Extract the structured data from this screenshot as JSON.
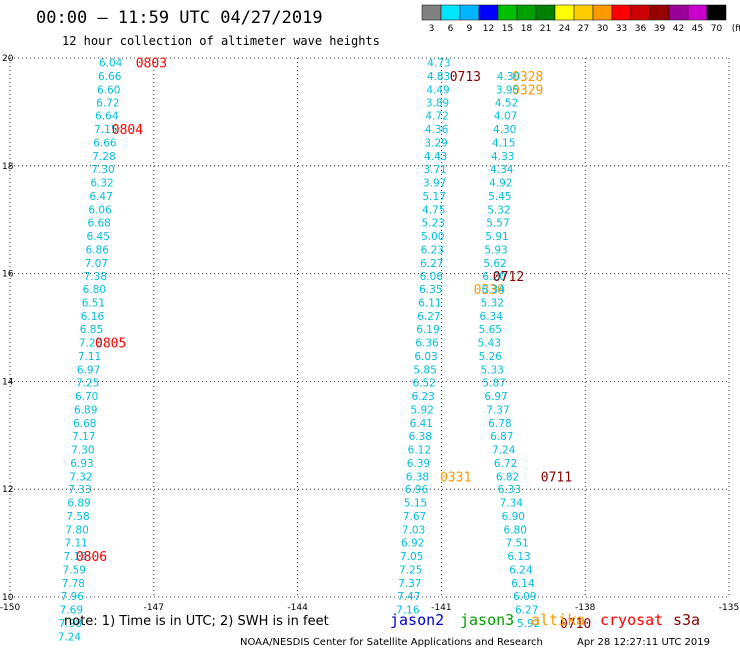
{
  "title": "00:00 – 11:59 UTC 04/27/2019",
  "subtitle": "12 hour collection of altimeter wave heights",
  "colorbar": {
    "labels": [
      "3",
      "6",
      "9",
      "12",
      "15",
      "18",
      "21",
      "24",
      "27",
      "30",
      "33",
      "36",
      "39",
      "42",
      "45",
      "70",
      "(ft)"
    ],
    "colors": [
      "#808080",
      "#00e5ff",
      "#00b4ff",
      "#0000ff",
      "#00c000",
      "#00a000",
      "#008000",
      "#ffff00",
      "#ffcc00",
      "#ff9900",
      "#ff0000",
      "#cc0000",
      "#990000",
      "#990099",
      "#cc00cc",
      "#000000"
    ]
  },
  "note": "note:  1) Time is in UTC;  2) SWH is in feet",
  "satellites": [
    {
      "name": "jason2",
      "color": "#0000cc"
    },
    {
      "name": "jason3",
      "color": "#00a000"
    },
    {
      "name": "altika",
      "color": "#ff9900"
    },
    {
      "name": "cryosat",
      "color": "#ff0000"
    },
    {
      "name": "s3a",
      "color": "#880000"
    }
  ],
  "footer_left": "NOAA/NESDIS Center for Satellite Applications and Research",
  "footer_right": "Apr 28 12:27:11 UTC 2019",
  "chart_data": {
    "type": "scatter",
    "xlim": [
      -150,
      -135
    ],
    "ylim": [
      10,
      20
    ],
    "xticks": [
      "-150",
      "-147",
      "-144",
      "-141",
      "-138",
      "-135"
    ],
    "yticks": [
      "20",
      "18",
      "16",
      "14",
      "12",
      "10"
    ],
    "value_color": "#00bfdf",
    "tracks": [
      {
        "satellite": "cryosat",
        "points": [
          {
            "lon": -147.9,
            "lat": 19.92,
            "swh": "6.04"
          },
          {
            "lon": -147.92,
            "lat": 19.67,
            "swh": "6.66"
          },
          {
            "lon": -147.94,
            "lat": 19.42,
            "swh": "6.60"
          },
          {
            "lon": -147.96,
            "lat": 19.17,
            "swh": "6.72"
          },
          {
            "lon": -147.98,
            "lat": 18.93,
            "swh": "6.64"
          },
          {
            "lon": -148.0,
            "lat": 18.68,
            "swh": "7.15"
          },
          {
            "lon": -148.02,
            "lat": 18.43,
            "swh": "6.66"
          },
          {
            "lon": -148.04,
            "lat": 18.18,
            "swh": "7.28"
          },
          {
            "lon": -148.06,
            "lat": 17.94,
            "swh": "7.30"
          },
          {
            "lon": -148.08,
            "lat": 17.69,
            "swh": "6.32"
          },
          {
            "lon": -148.1,
            "lat": 17.44,
            "swh": "6.47"
          },
          {
            "lon": -148.12,
            "lat": 17.19,
            "swh": "6.06"
          },
          {
            "lon": -148.14,
            "lat": 16.95,
            "swh": "6.68"
          },
          {
            "lon": -148.16,
            "lat": 16.7,
            "swh": "6.45"
          },
          {
            "lon": -148.18,
            "lat": 16.45,
            "swh": "6.86"
          },
          {
            "lon": -148.2,
            "lat": 16.2,
            "swh": "7.07"
          },
          {
            "lon": -148.22,
            "lat": 15.96,
            "swh": "7.38"
          },
          {
            "lon": -148.24,
            "lat": 15.71,
            "swh": "6.80"
          },
          {
            "lon": -148.26,
            "lat": 15.46,
            "swh": "6.51"
          },
          {
            "lon": -148.28,
            "lat": 15.21,
            "swh": "6.16"
          },
          {
            "lon": -148.3,
            "lat": 14.97,
            "swh": "6.85"
          },
          {
            "lon": -148.32,
            "lat": 14.72,
            "swh": "7.20"
          },
          {
            "lon": -148.34,
            "lat": 14.47,
            "swh": "7.11"
          },
          {
            "lon": -148.36,
            "lat": 14.22,
            "swh": "6.97"
          },
          {
            "lon": -148.38,
            "lat": 13.98,
            "swh": "7.25"
          },
          {
            "lon": -148.4,
            "lat": 13.73,
            "swh": "6.70"
          },
          {
            "lon": -148.42,
            "lat": 13.48,
            "swh": "6.89"
          },
          {
            "lon": -148.44,
            "lat": 13.23,
            "swh": "6.68"
          },
          {
            "lon": -148.46,
            "lat": 12.99,
            "swh": "7.17"
          },
          {
            "lon": -148.48,
            "lat": 12.74,
            "swh": "7.30"
          },
          {
            "lon": -148.5,
            "lat": 12.49,
            "swh": "6.93"
          },
          {
            "lon": -148.52,
            "lat": 12.24,
            "swh": "7.32"
          },
          {
            "lon": -148.54,
            "lat": 12.0,
            "swh": "7.33"
          },
          {
            "lon": -148.56,
            "lat": 11.75,
            "swh": "6.89"
          },
          {
            "lon": -148.58,
            "lat": 11.5,
            "swh": "7.58"
          },
          {
            "lon": -148.6,
            "lat": 11.25,
            "swh": "7.80"
          },
          {
            "lon": -148.62,
            "lat": 11.01,
            "swh": "7.11"
          },
          {
            "lon": -148.64,
            "lat": 10.76,
            "swh": "7.13"
          },
          {
            "lon": -148.66,
            "lat": 10.51,
            "swh": "7.59"
          },
          {
            "lon": -148.68,
            "lat": 10.26,
            "swh": "7.78"
          },
          {
            "lon": -148.7,
            "lat": 10.02,
            "swh": "7.96"
          },
          {
            "lon": -148.72,
            "lat": 9.77,
            "swh": "7.69"
          },
          {
            "lon": -148.74,
            "lat": 9.52,
            "swh": "7.98"
          },
          {
            "lon": -148.76,
            "lat": 9.27,
            "swh": "7.24"
          }
        ],
        "time_labels": [
          {
            "lon": -147.05,
            "lat": 19.92,
            "text": "0803"
          },
          {
            "lon": -147.55,
            "lat": 18.68,
            "text": "0804"
          },
          {
            "lon": -147.9,
            "lat": 14.72,
            "text": "0805"
          },
          {
            "lon": -148.3,
            "lat": 10.76,
            "text": "0806"
          }
        ]
      },
      {
        "satellite": "altika",
        "points": [
          {
            "lon": -141.05,
            "lat": 19.92,
            "swh": "4.73"
          },
          {
            "lon": -141.06,
            "lat": 19.67,
            "swh": "4.83"
          },
          {
            "lon": -141.07,
            "lat": 19.42,
            "swh": "4.49"
          },
          {
            "lon": -141.08,
            "lat": 19.17,
            "swh": "3.89"
          },
          {
            "lon": -141.09,
            "lat": 18.93,
            "swh": "4.72"
          },
          {
            "lon": -141.1,
            "lat": 18.68,
            "swh": "4.36"
          },
          {
            "lon": -141.11,
            "lat": 18.43,
            "swh": "3.29"
          },
          {
            "lon": -141.12,
            "lat": 18.18,
            "swh": "4.43"
          },
          {
            "lon": -141.13,
            "lat": 17.94,
            "swh": "3.71"
          },
          {
            "lon": -141.14,
            "lat": 17.69,
            "swh": "3.97"
          },
          {
            "lon": -141.15,
            "lat": 17.44,
            "swh": "5.17"
          },
          {
            "lon": -141.16,
            "lat": 17.19,
            "swh": "4.75"
          },
          {
            "lon": -141.17,
            "lat": 16.95,
            "swh": "5.23"
          },
          {
            "lon": -141.18,
            "lat": 16.7,
            "swh": "5.00"
          },
          {
            "lon": -141.19,
            "lat": 16.45,
            "swh": "6.23"
          },
          {
            "lon": -141.2,
            "lat": 16.2,
            "swh": "6.27"
          },
          {
            "lon": -141.21,
            "lat": 15.96,
            "swh": "6.06"
          },
          {
            "lon": -141.22,
            "lat": 15.71,
            "swh": "6.35"
          },
          {
            "lon": -141.24,
            "lat": 15.46,
            "swh": "6.11"
          },
          {
            "lon": -141.26,
            "lat": 15.21,
            "swh": "6.27"
          },
          {
            "lon": -141.28,
            "lat": 14.97,
            "swh": "6.19"
          },
          {
            "lon": -141.3,
            "lat": 14.72,
            "swh": "6.36"
          },
          {
            "lon": -141.32,
            "lat": 14.47,
            "swh": "6.03"
          },
          {
            "lon": -141.34,
            "lat": 14.22,
            "swh": "5.85"
          },
          {
            "lon": -141.36,
            "lat": 13.98,
            "swh": "6.52"
          },
          {
            "lon": -141.38,
            "lat": 13.73,
            "swh": "6.23"
          },
          {
            "lon": -141.4,
            "lat": 13.48,
            "swh": "5.92"
          },
          {
            "lon": -141.42,
            "lat": 13.23,
            "swh": "6.41"
          },
          {
            "lon": -141.44,
            "lat": 12.99,
            "swh": "6.38"
          },
          {
            "lon": -141.46,
            "lat": 12.74,
            "swh": "6.12"
          },
          {
            "lon": -141.48,
            "lat": 12.49,
            "swh": "6.39"
          },
          {
            "lon": -141.5,
            "lat": 12.24,
            "swh": "6.38"
          },
          {
            "lon": -141.52,
            "lat": 12.0,
            "swh": "6.96"
          },
          {
            "lon": -141.54,
            "lat": 11.75,
            "swh": "5.15"
          },
          {
            "lon": -141.56,
            "lat": 11.5,
            "swh": "7.67"
          },
          {
            "lon": -141.58,
            "lat": 11.25,
            "swh": "7.03"
          },
          {
            "lon": -141.6,
            "lat": 11.01,
            "swh": "6.92"
          },
          {
            "lon": -141.62,
            "lat": 10.76,
            "swh": "7.05"
          },
          {
            "lon": -141.64,
            "lat": 10.51,
            "swh": "7.25"
          },
          {
            "lon": -141.66,
            "lat": 10.26,
            "swh": "7.37"
          },
          {
            "lon": -141.68,
            "lat": 10.02,
            "swh": "7.47"
          },
          {
            "lon": -141.7,
            "lat": 9.77,
            "swh": "7.16"
          }
        ],
        "time_labels": [
          {
            "lon": -139.2,
            "lat": 19.67,
            "text": "0328"
          },
          {
            "lon": -139.2,
            "lat": 19.42,
            "text": "0329"
          },
          {
            "lon": -140.0,
            "lat": 15.71,
            "text": "0330"
          },
          {
            "lon": -140.7,
            "lat": 12.24,
            "text": "0331"
          }
        ]
      },
      {
        "satellite": "s3a",
        "points": [
          {
            "lon": -139.6,
            "lat": 19.67,
            "swh": "4.30"
          },
          {
            "lon": -139.62,
            "lat": 19.42,
            "swh": "3.95"
          },
          {
            "lon": -139.64,
            "lat": 19.17,
            "swh": "4.52"
          },
          {
            "lon": -139.66,
            "lat": 18.93,
            "swh": "4.07"
          },
          {
            "lon": -139.68,
            "lat": 18.68,
            "swh": "4.30"
          },
          {
            "lon": -139.7,
            "lat": 18.43,
            "swh": "4.15"
          },
          {
            "lon": -139.72,
            "lat": 18.18,
            "swh": "4.33"
          },
          {
            "lon": -139.74,
            "lat": 17.94,
            "swh": "4.34"
          },
          {
            "lon": -139.76,
            "lat": 17.69,
            "swh": "4.92"
          },
          {
            "lon": -139.78,
            "lat": 17.44,
            "swh": "5.45"
          },
          {
            "lon": -139.8,
            "lat": 17.19,
            "swh": "5.32"
          },
          {
            "lon": -139.82,
            "lat": 16.95,
            "swh": "5.57"
          },
          {
            "lon": -139.84,
            "lat": 16.7,
            "swh": "5.91"
          },
          {
            "lon": -139.86,
            "lat": 16.45,
            "swh": "5.93"
          },
          {
            "lon": -139.88,
            "lat": 16.2,
            "swh": "5.62"
          },
          {
            "lon": -139.9,
            "lat": 15.96,
            "swh": "6.20"
          },
          {
            "lon": -139.92,
            "lat": 15.71,
            "swh": "6.34"
          },
          {
            "lon": -139.94,
            "lat": 15.46,
            "swh": "5.32"
          },
          {
            "lon": -139.96,
            "lat": 15.21,
            "swh": "6.34"
          },
          {
            "lon": -139.98,
            "lat": 14.97,
            "swh": "5.65"
          },
          {
            "lon": -140.0,
            "lat": 14.72,
            "swh": "5.43"
          },
          {
            "lon": -139.98,
            "lat": 14.47,
            "swh": "5.26"
          },
          {
            "lon": -139.94,
            "lat": 14.22,
            "swh": "5.33"
          },
          {
            "lon": -139.9,
            "lat": 13.98,
            "swh": "5.87"
          },
          {
            "lon": -139.86,
            "lat": 13.73,
            "swh": "6.97"
          },
          {
            "lon": -139.82,
            "lat": 13.48,
            "swh": "7.37"
          },
          {
            "lon": -139.78,
            "lat": 13.23,
            "swh": "6.78"
          },
          {
            "lon": -139.74,
            "lat": 12.99,
            "swh": "6.87"
          },
          {
            "lon": -139.7,
            "lat": 12.74,
            "swh": "7.24"
          },
          {
            "lon": -139.66,
            "lat": 12.49,
            "swh": "6.72"
          },
          {
            "lon": -139.62,
            "lat": 12.24,
            "swh": "6.82"
          },
          {
            "lon": -139.58,
            "lat": 12.0,
            "swh": "6.33"
          },
          {
            "lon": -139.54,
            "lat": 11.75,
            "swh": "7.34"
          },
          {
            "lon": -139.5,
            "lat": 11.5,
            "swh": "6.90"
          },
          {
            "lon": -139.46,
            "lat": 11.25,
            "swh": "6.80"
          },
          {
            "lon": -139.42,
            "lat": 11.01,
            "swh": "7.51"
          },
          {
            "lon": -139.38,
            "lat": 10.76,
            "swh": "6.13"
          },
          {
            "lon": -139.34,
            "lat": 10.51,
            "swh": "6.24"
          },
          {
            "lon": -139.3,
            "lat": 10.26,
            "swh": "6.14"
          },
          {
            "lon": -139.26,
            "lat": 10.02,
            "swh": "6.09"
          },
          {
            "lon": -139.22,
            "lat": 9.77,
            "swh": "6.27"
          },
          {
            "lon": -139.18,
            "lat": 9.52,
            "swh": "5.92"
          }
        ],
        "time_labels": [
          {
            "lon": -140.5,
            "lat": 19.67,
            "text": "0713"
          },
          {
            "lon": -139.6,
            "lat": 15.96,
            "text": "0712"
          },
          {
            "lon": -138.6,
            "lat": 12.24,
            "text": "0711"
          },
          {
            "lon": -138.2,
            "lat": 9.52,
            "text": "0710"
          }
        ]
      }
    ]
  }
}
